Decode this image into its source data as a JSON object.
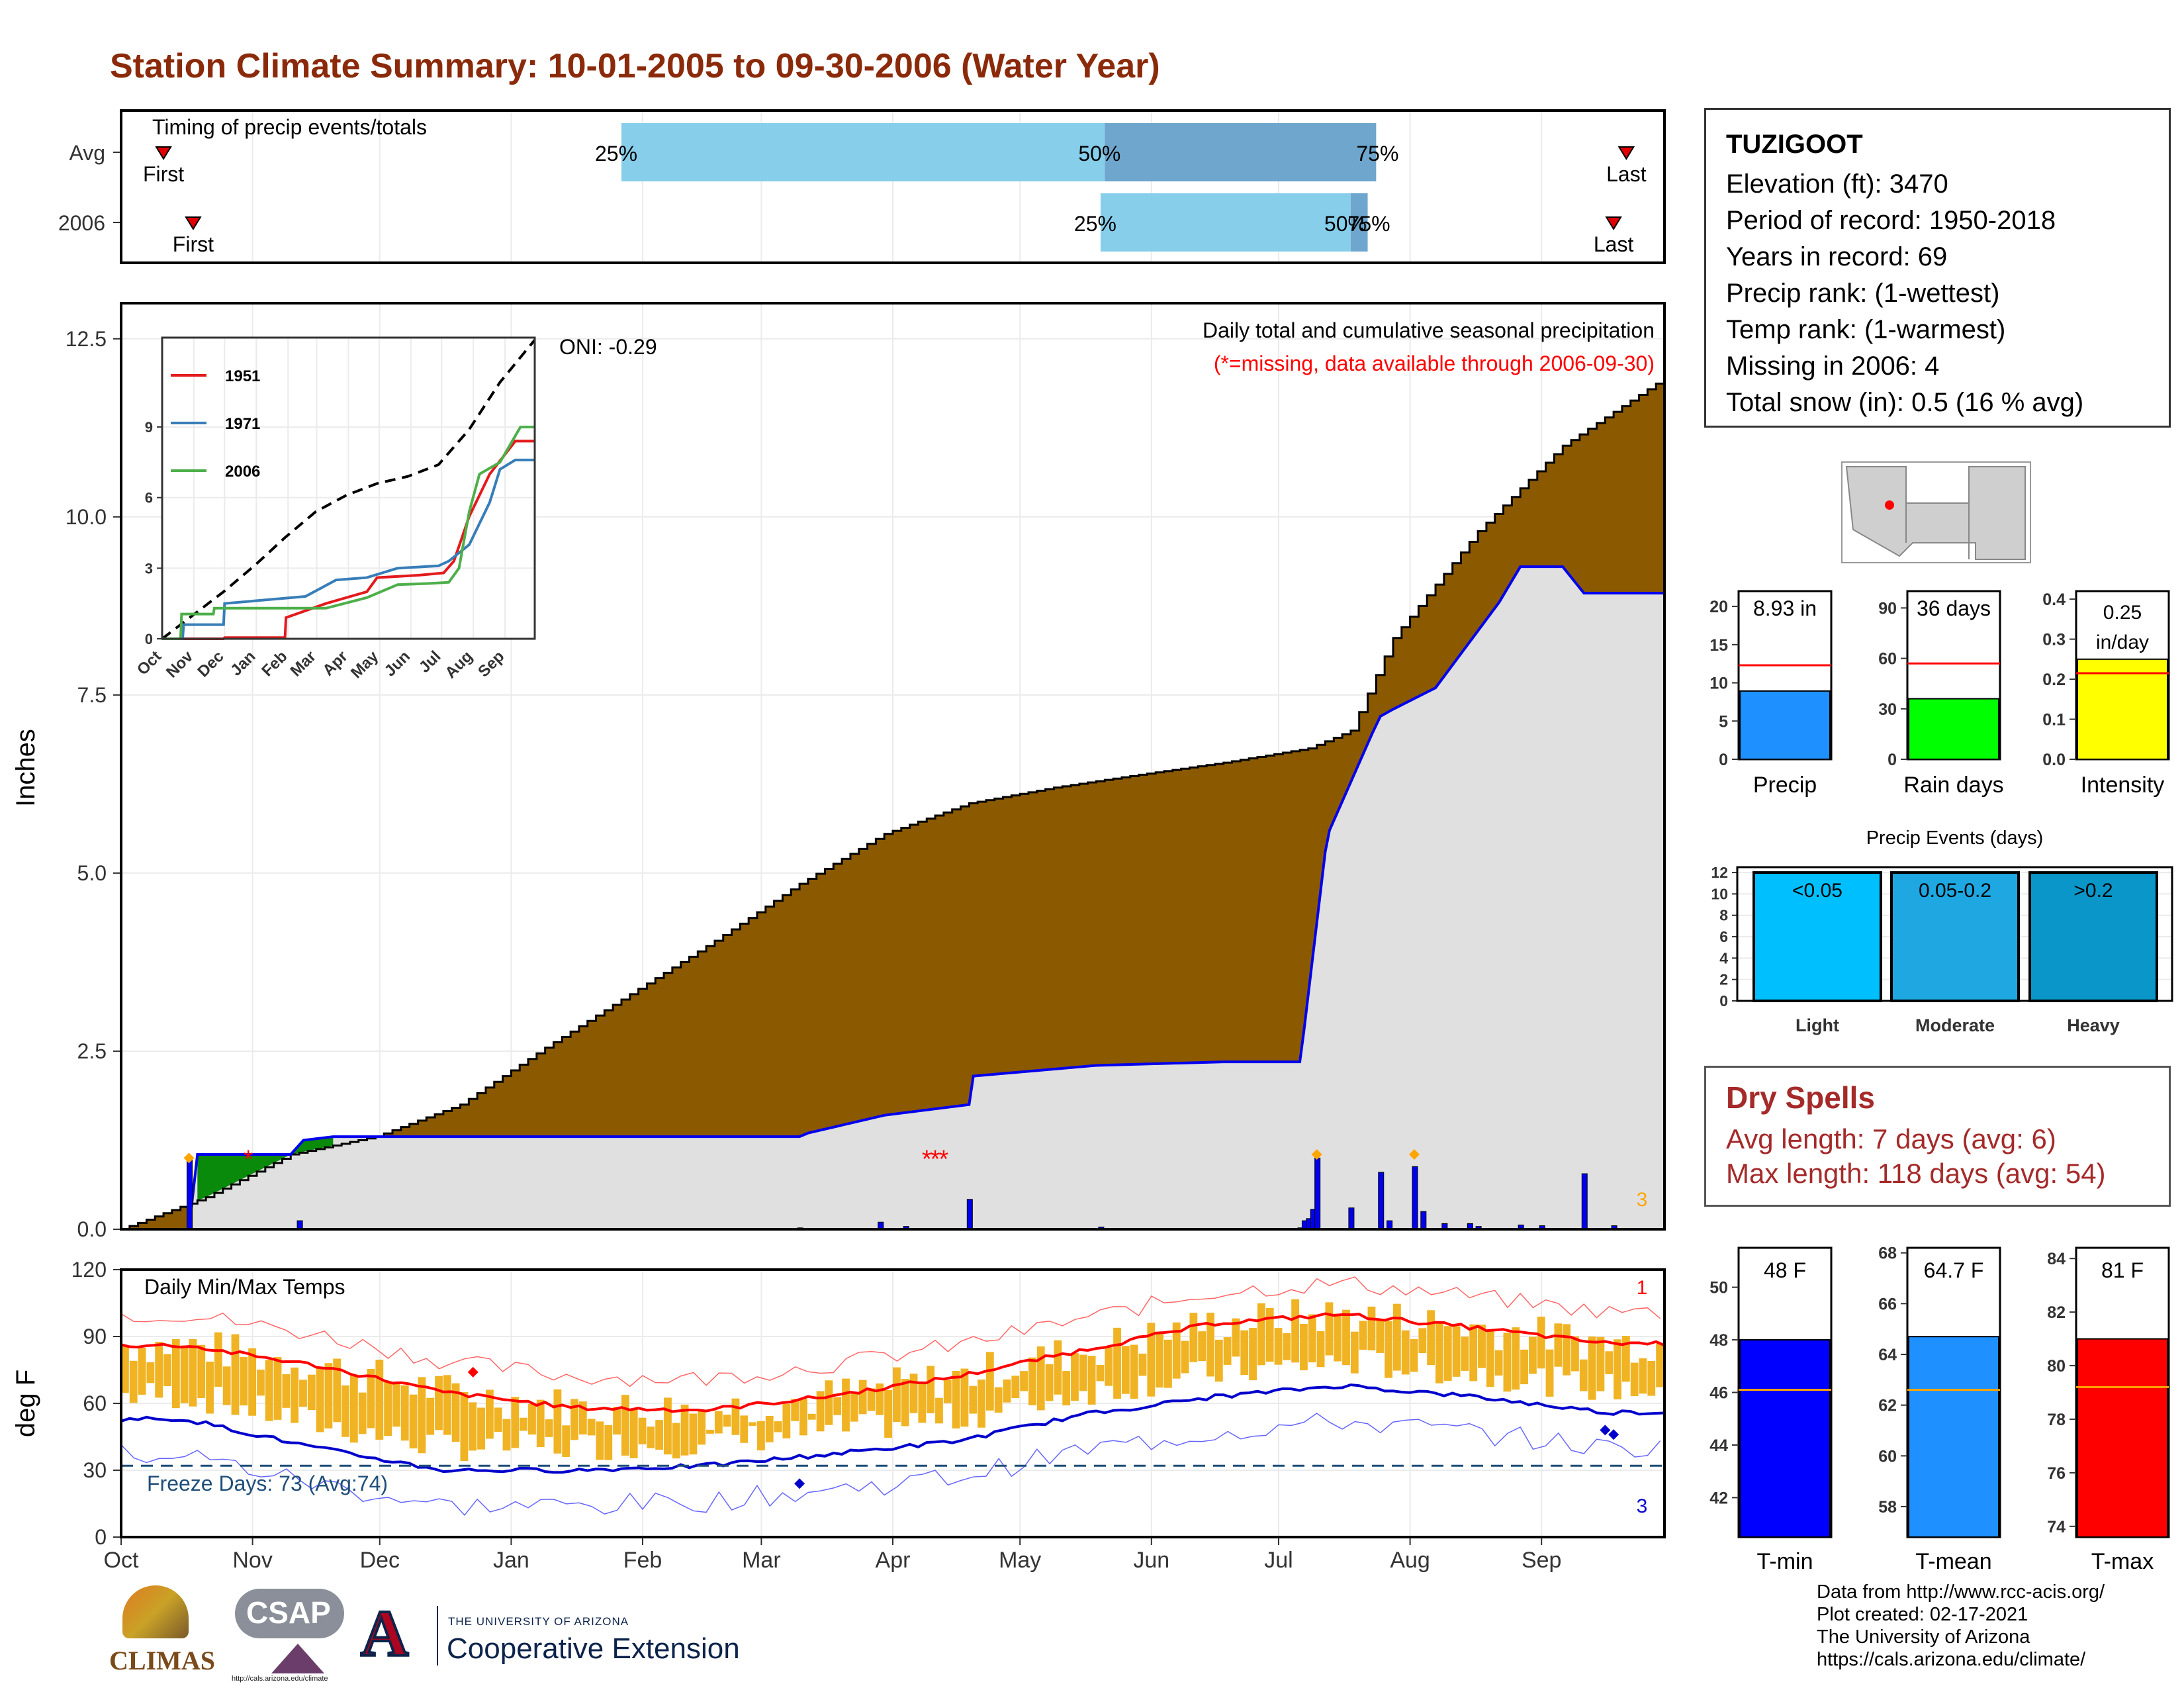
{
  "title": "Station Climate Summary: 10-01-2005 to 09-30-2006 (Water Year)",
  "colors": {
    "title": "#8b2a0a",
    "brown": "#8b5a00",
    "gray_fill": "#e0e0e0",
    "blue": "#0000ee",
    "light_blue": "#87ceeb",
    "mid_blue": "#6ea6cd",
    "temp_bar": "#f0b323",
    "red": "#ff0000",
    "dry_spell": "#a52a2a"
  },
  "months": [
    "Oct",
    "Nov",
    "Dec",
    "Jan",
    "Feb",
    "Mar",
    "Apr",
    "May",
    "Jun",
    "Jul",
    "Aug",
    "Sep"
  ],
  "timing": {
    "title": "Timing of precip events/totals",
    "rows": [
      {
        "label": "Avg",
        "first_label": "First",
        "last_label": "Last",
        "first_day": 10,
        "last_day": 355,
        "p25_day": 118,
        "p50_day": 232,
        "p75_day": 296,
        "p25_label": "25%",
        "p50_label": "50%",
        "p75_label": "75%"
      },
      {
        "label": "2006",
        "first_label": "First",
        "last_label": "Last",
        "first_day": 17,
        "last_day": 352,
        "p25_day": 231,
        "p50_day": 290,
        "p75_day": 294,
        "p25_label": "25%",
        "p50_label": "50%",
        "p75_label": "75%"
      }
    ]
  },
  "precip_panel": {
    "ylabel": "Inches",
    "yticks": [
      0.0,
      2.5,
      5.0,
      7.5,
      10.0,
      12.5
    ],
    "ytick_labels": [
      "0.0",
      "2.5",
      "5.0",
      "7.5",
      "10.0",
      "12.5"
    ],
    "ylim": [
      0,
      13
    ],
    "header": "Daily total and cumulative seasonal precipitation",
    "missing_note": "(*=missing, data available through 2006-09-30)",
    "oni": "ONI: -0.29",
    "corner_count": "3"
  },
  "inset": {
    "yticks": [
      0,
      3,
      6,
      9
    ],
    "xticks": [
      "Oct",
      "Nov",
      "Dec",
      "Jan",
      "Feb",
      "Mar",
      "Apr",
      "May",
      "Jun",
      "Jul",
      "Aug",
      "Sep"
    ],
    "legend": [
      {
        "name": "1951",
        "color": "#e41a1c"
      },
      {
        "name": "1971",
        "color": "#377eb8"
      },
      {
        "name": "2006",
        "color": "#4daf4a"
      }
    ]
  },
  "temp_panel": {
    "ylabel": "deg F",
    "yticks": [
      0,
      30,
      60,
      90,
      120
    ],
    "ylim": [
      0,
      120
    ],
    "title": "Daily Min/Max Temps",
    "freeze": "Freeze Days: 73 (Avg:74)",
    "top_count": "1",
    "bottom_count": "3"
  },
  "station": {
    "name": "TUZIGOOT",
    "lines": [
      "Elevation (ft): 3470",
      "Period of record: 1950-2018",
      "Years in record: 69",
      "Precip rank:  (1-wettest)",
      "Temp rank:  (1-warmest)",
      "Missing in 2006: 4",
      "Total snow (in): 0.5 (16 % avg)"
    ]
  },
  "summary_bars": [
    {
      "label": "Precip",
      "value_label": "8.93 in",
      "value": 8.93,
      "avg": 12.3,
      "yticks": [
        0,
        5,
        10,
        15,
        20
      ],
      "ymax": 22,
      "color": "#1e90ff"
    },
    {
      "label": "Rain days",
      "value_label": "36 days",
      "value": 36,
      "avg": 57,
      "yticks": [
        0,
        30,
        60,
        90
      ],
      "ymax": 100,
      "color": "#00ff00"
    },
    {
      "label": "Intensity",
      "value_label": "0.25 in/day",
      "value": 0.25,
      "avg": 0.215,
      "yticks": [
        0.0,
        0.1,
        0.2,
        0.3,
        0.4
      ],
      "ymax": 0.42,
      "color": "#ffff00"
    }
  ],
  "precip_events": {
    "title": "Precip Events (days)",
    "yticks": [
      0,
      2,
      4,
      6,
      8,
      10,
      12
    ],
    "ymax": 12.5,
    "bars": [
      {
        "label": "Light",
        "range_label": "<0.05",
        "color": "#00bfff"
      },
      {
        "label": "Moderate",
        "range_label": "0.05-0.2",
        "color": "#1ea7e0"
      },
      {
        "label": "Heavy",
        "range_label": ">0.2",
        "color": "#0a96c8"
      }
    ]
  },
  "dry_spells": {
    "title": "Dry Spells",
    "avg_line": "Avg length: 7 days (avg: 6)",
    "max_line": "Max length: 118 days (avg: 54)"
  },
  "temp_bars": [
    {
      "label": "T-min",
      "value_label": "48 F",
      "value": 48,
      "avg": 46.1,
      "yticks": [
        42,
        44,
        46,
        48,
        50
      ],
      "ymin": 40.5,
      "ymax": 51.5,
      "color": "#0000ff"
    },
    {
      "label": "T-mean",
      "value_label": "64.7 F",
      "value": 64.7,
      "avg": 62.6,
      "yticks": [
        58,
        60,
        62,
        64,
        66,
        68
      ],
      "ymin": 56.8,
      "ymax": 68.2,
      "color": "#1e90ff"
    },
    {
      "label": "T-max",
      "value_label": "81 F",
      "value": 81,
      "avg": 79.2,
      "yticks": [
        74,
        76,
        78,
        80,
        82,
        84
      ],
      "ymin": 73.6,
      "ymax": 84.4,
      "color": "#ff0000"
    }
  ],
  "footer": [
    "Data from http://www.rcc-acis.org/",
    "Plot created: 02-17-2021",
    "The University of Arizona",
    "https://cals.arizona.edu/climate/"
  ],
  "logos": {
    "climas": "CLIMAS",
    "csap": "CSAP",
    "csap_url": "http://cals.arizona.edu/climate",
    "ua_small": "THE UNIVERSITY OF ARIZONA",
    "ua_big": "Cooperative Extension",
    "ua_letter": "A"
  },
  "chart_data": [
    {
      "type": "area",
      "title": "Daily total and cumulative seasonal precipitation",
      "ylabel": "Inches",
      "ylim": [
        0,
        13
      ],
      "x_unit": "day of water year",
      "series": [
        {
          "name": "",
          "x": [
            0,
            20,
            40,
            60,
            80,
            100,
            120,
            140,
            160,
            180,
            200,
            220,
            240,
            260,
            280,
            290,
            300,
            320,
            340,
            364
          ],
          "values": [
            0.0,
            0.45,
            1.05,
            1.3,
            1.75,
            2.55,
            3.3,
            4.05,
            4.85,
            5.55,
            5.98,
            6.2,
            6.38,
            6.55,
            6.75,
            7.0,
            8.3,
            9.8,
            11.0,
            11.95
          ]
        },
        {
          "name": "",
          "x": [
            0,
            16,
            18,
            40,
            43,
            50,
            160,
            162,
            180,
            200,
            201,
            230,
            260,
            278,
            279,
            284,
            285,
            295,
            297,
            300,
            310,
            325,
            330,
            340,
            345,
            364
          ],
          "values": [
            0.0,
            0.0,
            1.05,
            1.05,
            1.25,
            1.3,
            1.3,
            1.35,
            1.6,
            1.75,
            2.15,
            2.3,
            2.35,
            2.35,
            2.8,
            5.3,
            5.6,
            6.95,
            7.2,
            7.3,
            7.6,
            8.8,
            9.3,
            9.3,
            8.93,
            8.93
          ]
        }
      ]
    },
    {
      "type": "line",
      "title": "Daily Min/Max Temps",
      "ylabel": "deg F",
      "ylim": [
        0,
        120
      ],
      "categories": [
        "Oct",
        "Nov",
        "Dec",
        "Jan",
        "Feb",
        "Mar",
        "Apr",
        "May",
        "Jun",
        "Jul",
        "Aug",
        "Sep"
      ],
      "series": [
        {
          "name": "",
          "values": [
            86,
            77,
            65,
            58,
            57,
            63,
            72,
            84,
            96,
            100,
            94,
            87
          ]
        },
        {
          "name": "",
          "values": [
            53,
            40,
            30,
            30,
            32,
            37,
            43,
            55,
            63,
            68,
            63,
            56
          ]
        }
      ]
    }
  ]
}
